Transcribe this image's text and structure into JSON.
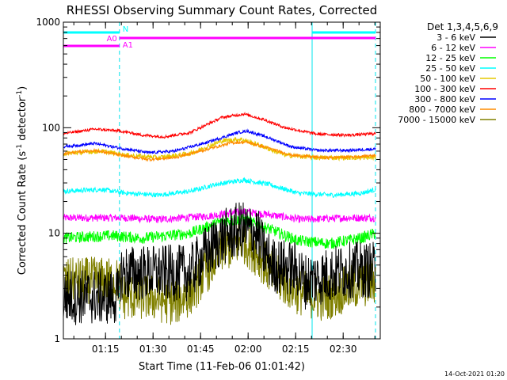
{
  "chart_data": {
    "type": "line",
    "title": "RHESSI Observing Summary Count Rates, Corrected",
    "xlabel": "Start Time (11-Feb-06 01:01:42)",
    "ylabel_parts": {
      "main": "Corrected Count Rate (s",
      "sup1": "-1",
      "mid": " detector",
      "sup2": "-1",
      "end": ")"
    },
    "y_scale": "log",
    "ylim": [
      1,
      1000
    ],
    "xlim_minutes": [
      0,
      100
    ],
    "x_ticks": [
      {
        "t": 13.3,
        "label": "01:15"
      },
      {
        "t": 28.3,
        "label": "01:30"
      },
      {
        "t": 43.3,
        "label": "01:45"
      },
      {
        "t": 58.3,
        "label": "02:00"
      },
      {
        "t": 73.3,
        "label": "02:15"
      },
      {
        "t": 88.3,
        "label": "02:30"
      }
    ],
    "y_ticks": [
      {
        "v": 1,
        "label": "1"
      },
      {
        "v": 10,
        "label": "10"
      },
      {
        "v": 100,
        "label": "100"
      },
      {
        "v": 1000,
        "label": "1000"
      }
    ],
    "legend": {
      "title": "Det 1,3,4,5,6,9",
      "placement": "right"
    },
    "series": [
      {
        "name": "3 - 6 keV",
        "color": "#000000",
        "noise": 0.6,
        "anchors": [
          [
            0,
            2.5
          ],
          [
            17.6,
            2.5
          ],
          [
            17.8,
            4.2
          ],
          [
            40,
            4.2
          ],
          [
            44,
            6
          ],
          [
            50,
            9
          ],
          [
            56,
            11
          ],
          [
            61,
            10
          ],
          [
            63,
            7
          ],
          [
            66,
            5
          ],
          [
            74,
            4.5
          ],
          [
            76,
            3.5
          ],
          [
            90,
            4.5
          ],
          [
            98.5,
            4.5
          ]
        ]
      },
      {
        "name": "6 - 12 keV",
        "color": "#ff00ff",
        "noise": 0.08,
        "anchors": [
          [
            0,
            14
          ],
          [
            20,
            14
          ],
          [
            30,
            13.5
          ],
          [
            45,
            14.5
          ],
          [
            57,
            16
          ],
          [
            65,
            15
          ],
          [
            75,
            13.5
          ],
          [
            90,
            14
          ],
          [
            98.5,
            14
          ]
        ]
      },
      {
        "name": "12 - 25 keV",
        "color": "#00ff00",
        "noise": 0.12,
        "anchors": [
          [
            0,
            9
          ],
          [
            15,
            9.5
          ],
          [
            25,
            9
          ],
          [
            40,
            10
          ],
          [
            50,
            13
          ],
          [
            57,
            13.5
          ],
          [
            65,
            11
          ],
          [
            74,
            8.5
          ],
          [
            84,
            8
          ],
          [
            94,
            9
          ],
          [
            98.5,
            10
          ]
        ]
      },
      {
        "name": "25 - 50 keV",
        "color": "#00ffff",
        "noise": 0.05,
        "anchors": [
          [
            0,
            25
          ],
          [
            12,
            26
          ],
          [
            20,
            24
          ],
          [
            30,
            23
          ],
          [
            40,
            25
          ],
          [
            48,
            29
          ],
          [
            57,
            32
          ],
          [
            65,
            29
          ],
          [
            74,
            24
          ],
          [
            85,
            23
          ],
          [
            94,
            24
          ],
          [
            98.5,
            26
          ]
        ]
      },
      {
        "name": "50 - 100 keV",
        "color": "#e6c800",
        "noise": 0.05,
        "anchors": [
          [
            0,
            57
          ],
          [
            12,
            60
          ],
          [
            20,
            55
          ],
          [
            30,
            52
          ],
          [
            40,
            57
          ],
          [
            50,
            75
          ],
          [
            56,
            78
          ],
          [
            62,
            68
          ],
          [
            70,
            55
          ],
          [
            80,
            52
          ],
          [
            90,
            52
          ],
          [
            98.5,
            52
          ]
        ]
      },
      {
        "name": "100 - 300 keV",
        "color": "#ff0000",
        "noise": 0.03,
        "anchors": [
          [
            0,
            88
          ],
          [
            10,
            97
          ],
          [
            18,
            93
          ],
          [
            25,
            85
          ],
          [
            32,
            82
          ],
          [
            40,
            90
          ],
          [
            50,
            125
          ],
          [
            57,
            135
          ],
          [
            63,
            120
          ],
          [
            70,
            100
          ],
          [
            80,
            87
          ],
          [
            90,
            85
          ],
          [
            98.5,
            88
          ]
        ]
      },
      {
        "name": "300 - 800 keV",
        "color": "#0000ff",
        "noise": 0.03,
        "anchors": [
          [
            0,
            66
          ],
          [
            10,
            71
          ],
          [
            18,
            64
          ],
          [
            27,
            58
          ],
          [
            35,
            60
          ],
          [
            45,
            72
          ],
          [
            55,
            90
          ],
          [
            58,
            93
          ],
          [
            64,
            82
          ],
          [
            72,
            66
          ],
          [
            80,
            61
          ],
          [
            90,
            61
          ],
          [
            98.5,
            63
          ]
        ]
      },
      {
        "name": "800 - 7000 keV",
        "color": "#ff8c00",
        "noise": 0.03,
        "anchors": [
          [
            0,
            57
          ],
          [
            10,
            61
          ],
          [
            18,
            55
          ],
          [
            27,
            50
          ],
          [
            35,
            52
          ],
          [
            45,
            62
          ],
          [
            53,
            72
          ],
          [
            58,
            73
          ],
          [
            64,
            65
          ],
          [
            72,
            55
          ],
          [
            82,
            52
          ],
          [
            92,
            53
          ],
          [
            98.5,
            55
          ]
        ]
      },
      {
        "name": "7000 - 15000 keV",
        "color": "#808000",
        "noise": 0.5,
        "anchors": [
          [
            0,
            3.5
          ],
          [
            10,
            3.6
          ],
          [
            17.7,
            3.5
          ],
          [
            18,
            2.5
          ],
          [
            27,
            2.5
          ],
          [
            35,
            2.2
          ],
          [
            40,
            2.7
          ],
          [
            44,
            4
          ],
          [
            50,
            7
          ],
          [
            57,
            8.5
          ],
          [
            62,
            6
          ],
          [
            66,
            4
          ],
          [
            74,
            2.8
          ],
          [
            82,
            2.4
          ],
          [
            90,
            3
          ],
          [
            98.5,
            3.5
          ]
        ]
      }
    ],
    "attenuator_bars": [
      {
        "label": "N",
        "color": "#00ffff",
        "segments": [
          [
            0,
            17.7
          ],
          [
            78.5,
            98.5
          ]
        ]
      },
      {
        "label": "A0",
        "color": "#ff00ff",
        "segments": [
          [
            17.7,
            98.5
          ]
        ]
      },
      {
        "label": "A1",
        "color": "#ff00ff",
        "segments": [
          [
            0,
            17.7
          ]
        ]
      }
    ],
    "boundaries": [
      {
        "t": 0,
        "style": "solid"
      },
      {
        "t": 17.7,
        "style": "dashed"
      },
      {
        "t": 78.5,
        "style": "solid"
      },
      {
        "t": 98.5,
        "style": "dashed"
      }
    ]
  },
  "footer": {
    "timestamp": "14-Oct-2021 01:20"
  }
}
